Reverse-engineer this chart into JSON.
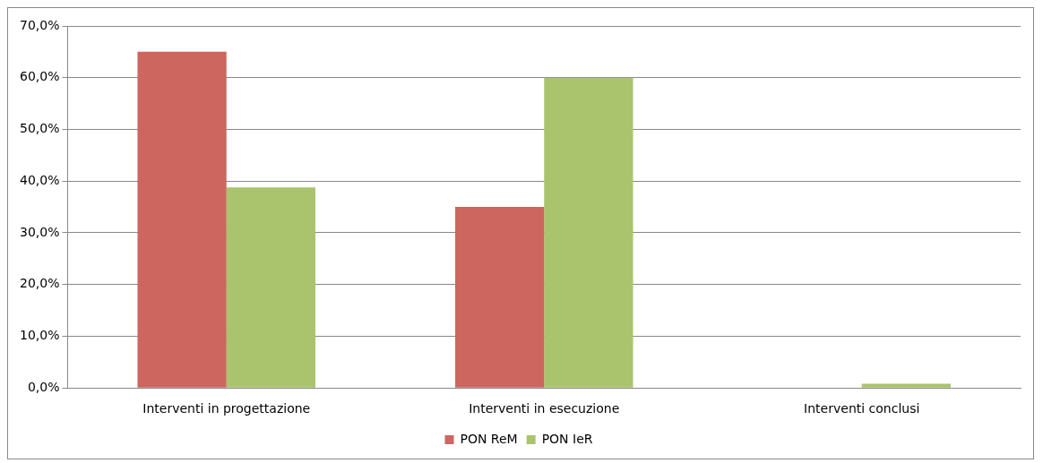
{
  "chart_data": {
    "type": "bar",
    "categories": [
      "Interventi in progettazione",
      "Interventi in esecuzione",
      "Interventi conclusi"
    ],
    "series": [
      {
        "name": "PON ReM",
        "color": "#cd665e",
        "values": [
          65,
          35,
          0
        ]
      },
      {
        "name": "PON IeR",
        "color": "#a9c46c",
        "values": [
          38.8,
          60,
          0.8
        ]
      }
    ],
    "ylim": [
      0,
      70
    ],
    "yticks": [
      {
        "value": 0,
        "label": "0,0%"
      },
      {
        "value": 10,
        "label": "10,0%"
      },
      {
        "value": 20,
        "label": "20,0%"
      },
      {
        "value": 30,
        "label": "30,0%"
      },
      {
        "value": 40,
        "label": "40,0%"
      },
      {
        "value": 50,
        "label": "50,0%"
      },
      {
        "value": 60,
        "label": "60,0%"
      },
      {
        "value": 70,
        "label": "70,0%"
      }
    ],
    "grid": "y",
    "legend": "bottom"
  }
}
